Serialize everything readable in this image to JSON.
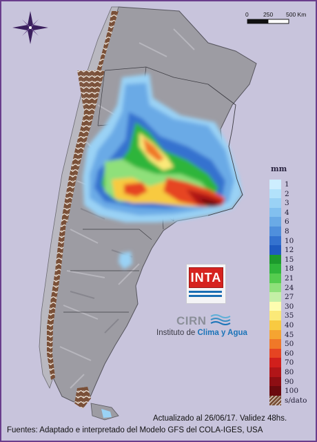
{
  "map": {
    "scale_bar": {
      "labels": [
        "0",
        "250",
        "500 Km"
      ]
    },
    "compass_icon": "compass-rose-icon"
  },
  "legend": {
    "title": "mm",
    "classes": [
      {
        "label": "1",
        "color": "#cdeeff"
      },
      {
        "label": "2",
        "color": "#b2e2fb"
      },
      {
        "label": "3",
        "color": "#9ad2f5"
      },
      {
        "label": "4",
        "color": "#82c0ef"
      },
      {
        "label": "6",
        "color": "#6aaae6"
      },
      {
        "label": "8",
        "color": "#4f8fdc"
      },
      {
        "label": "10",
        "color": "#3472cf"
      },
      {
        "label": "12",
        "color": "#1f5bc0"
      },
      {
        "label": "15",
        "color": "#1c9a2c"
      },
      {
        "label": "18",
        "color": "#2fb53a"
      },
      {
        "label": "21",
        "color": "#55cc4f"
      },
      {
        "label": "24",
        "color": "#8fe07a"
      },
      {
        "label": "27",
        "color": "#c4efa6"
      },
      {
        "label": "30",
        "color": "#fdfdb0"
      },
      {
        "label": "35",
        "color": "#fbe978"
      },
      {
        "label": "40",
        "color": "#f8ca41"
      },
      {
        "label": "45",
        "color": "#f5a431"
      },
      {
        "label": "50",
        "color": "#f07828"
      },
      {
        "label": "60",
        "color": "#e64422"
      },
      {
        "label": "70",
        "color": "#d11f1c"
      },
      {
        "label": "80",
        "color": "#b11518"
      },
      {
        "label": "90",
        "color": "#8e0e13"
      },
      {
        "label": "100",
        "color": "#6b0a0e"
      },
      {
        "label": "s/dato",
        "color": "#7a5038"
      }
    ]
  },
  "logos": {
    "inta": "INTA",
    "cirn": "CIRN",
    "instituto_prefix": "Instituto de ",
    "instituto_highlight": "Clima y Agua"
  },
  "footer": {
    "line1": "Actualizado al 26/06/17. Validez 48hs.",
    "line2": "Fuentes: Adaptado e interpretado del Modelo GFS del COLA-IGES, USA"
  }
}
